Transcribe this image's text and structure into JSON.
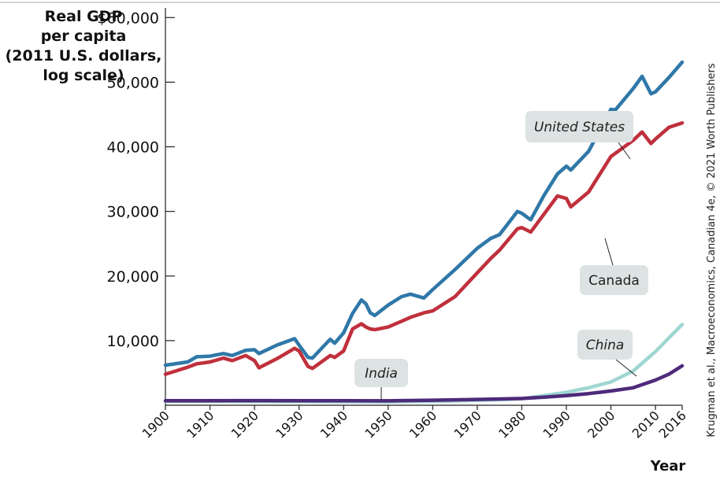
{
  "chart_data": {
    "type": "line",
    "ylabel": [
      "Real GDP",
      "per capita",
      "(2011 U.S. dollars,",
      "log scale)"
    ],
    "xlabel": "Year",
    "credit": "Krugman et al., Macroeconomics, Canadian 4e, © 2021 Worth Publishers",
    "y_ticks": [
      {
        "value": 10000,
        "label": "10,000"
      },
      {
        "value": 20000,
        "label": "20,000"
      },
      {
        "value": 30000,
        "label": "30,000"
      },
      {
        "value": 40000,
        "label": "40,000"
      },
      {
        "value": 50000,
        "label": "50,000"
      },
      {
        "value": 60000,
        "label": "$60,000"
      }
    ],
    "x_ticks": [
      "1900",
      "1910",
      "1920",
      "1930",
      "1940",
      "1950",
      "1960",
      "1970",
      "1980",
      "1990",
      "2000",
      "2010",
      "2016"
    ],
    "xlim": [
      1900,
      2016
    ],
    "ylim": [
      0,
      61500
    ],
    "grid": false,
    "series": [
      {
        "name": "United States",
        "color": "#2f78a8",
        "x": [
          1900,
          1905,
          1907,
          1910,
          1913,
          1915,
          1918,
          1920,
          1921,
          1925,
          1929,
          1930,
          1932,
          1933,
          1936,
          1937,
          1938,
          1940,
          1942,
          1944,
          1945,
          1946,
          1947,
          1950,
          1953,
          1955,
          1958,
          1960,
          1965,
          1970,
          1973,
          1975,
          1979,
          1980,
          1982,
          1985,
          1988,
          1990,
          1991,
          1995,
          2000,
          2001,
          2005,
          2007,
          2009,
          2010,
          2013,
          2016
        ],
        "y": [
          6200,
          6700,
          7500,
          7600,
          8000,
          7700,
          8500,
          8600,
          8000,
          9300,
          10300,
          9300,
          7400,
          7300,
          9500,
          10200,
          9600,
          11200,
          14200,
          16300,
          15700,
          14300,
          13900,
          15500,
          16800,
          17200,
          16600,
          17900,
          21000,
          24300,
          25800,
          26400,
          30000,
          29700,
          28700,
          32500,
          35800,
          37000,
          36400,
          39300,
          45800,
          45700,
          49000,
          50900,
          48200,
          48500,
          50700,
          53100
        ]
      },
      {
        "name": "Canada",
        "color": "#c0303c",
        "x": [
          1900,
          1905,
          1907,
          1910,
          1913,
          1915,
          1918,
          1920,
          1921,
          1925,
          1929,
          1930,
          1932,
          1933,
          1936,
          1937,
          1938,
          1940,
          1942,
          1944,
          1945,
          1946,
          1947,
          1950,
          1953,
          1955,
          1958,
          1960,
          1965,
          1970,
          1973,
          1975,
          1979,
          1980,
          1982,
          1985,
          1988,
          1990,
          1991,
          1995,
          2000,
          2001,
          2005,
          2007,
          2009,
          2010,
          2013,
          2016
        ],
        "y": [
          4800,
          5900,
          6400,
          6700,
          7300,
          6900,
          7700,
          6900,
          5800,
          7200,
          8800,
          8400,
          6000,
          5700,
          7200,
          7700,
          7400,
          8400,
          11800,
          12600,
          12100,
          11800,
          11700,
          12100,
          13000,
          13600,
          14300,
          14600,
          16800,
          20500,
          22700,
          24000,
          27300,
          27500,
          26800,
          29600,
          32400,
          32000,
          30700,
          33000,
          38500,
          39000,
          41000,
          42300,
          40500,
          41200,
          43000,
          43700
        ]
      },
      {
        "name": "China",
        "color": "#9fd6d2",
        "x": [
          1900,
          1920,
          1940,
          1950,
          1960,
          1970,
          1975,
          1980,
          1985,
          1990,
          1995,
          2000,
          2005,
          2010,
          2013,
          2016
        ],
        "y": [
          600,
          600,
          550,
          520,
          600,
          750,
          850,
          1000,
          1500,
          2000,
          2700,
          3600,
          5300,
          8300,
          10400,
          12500
        ]
      },
      {
        "name": "India",
        "color": "#4e2a7a",
        "x": [
          1900,
          1920,
          1940,
          1950,
          1960,
          1970,
          1980,
          1985,
          1990,
          1995,
          2000,
          2005,
          2010,
          2013,
          2016
        ],
        "y": [
          700,
          720,
          690,
          680,
          780,
          900,
          1050,
          1250,
          1500,
          1800,
          2200,
          2700,
          3900,
          4800,
          6100
        ]
      }
    ],
    "callouts": [
      {
        "series": "United States",
        "label": "United States",
        "italic": true
      },
      {
        "series": "Canada",
        "label": "Canada",
        "italic": false
      },
      {
        "series": "China",
        "label": "China",
        "italic": true
      },
      {
        "series": "India",
        "label": "India",
        "italic": true
      }
    ]
  }
}
